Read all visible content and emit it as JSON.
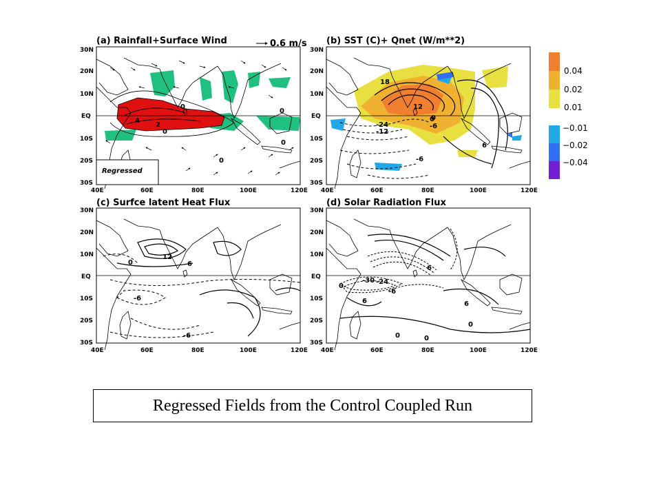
{
  "panels": {
    "a": {
      "title": "(a) Rainfall+Surface Wind",
      "ref_vector": "0.6 m/s",
      "inset": "Regressed",
      "labels": [
        "0",
        "4",
        "2",
        "0",
        "0",
        "0",
        "0"
      ]
    },
    "b": {
      "title": "(b) SST (C)+ Qnet (W/m**2)",
      "labels": [
        "18",
        "12",
        "0",
        "-6",
        "-24",
        "-12",
        "6",
        "-6",
        "0"
      ]
    },
    "c": {
      "title": "(c) Surfce latent Heat Flux",
      "labels": [
        "0",
        "12",
        "6",
        "-6",
        "-6"
      ]
    },
    "d": {
      "title": "(d) Solar Radiation Flux",
      "labels": [
        "6",
        "0",
        "-30",
        "-24",
        "-6",
        "6",
        "6",
        "0",
        "0",
        "0"
      ]
    }
  },
  "axes": {
    "lat": [
      "30N",
      "20N",
      "10N",
      "EQ",
      "10S",
      "20S",
      "30S"
    ],
    "lon_left": [
      "40E",
      "60E",
      "80E",
      "100E",
      "120E"
    ],
    "lon_right": [
      "40E",
      "60E",
      "80E",
      "100E",
      "120E"
    ]
  },
  "legend": {
    "items": [
      {
        "label": "0.04",
        "color": "#f08030"
      },
      {
        "label": "0.02",
        "color": "#f0b030"
      },
      {
        "label": "0.01",
        "color": "#e8e040"
      },
      {
        "label": "−0.01",
        "color": "#20a8e8"
      },
      {
        "label": "−0.02",
        "color": "#3070f0"
      },
      {
        "label": "−0.04",
        "color": "#7020d0"
      }
    ]
  },
  "colors": {
    "rain": "#e01010",
    "rain_neg": "#20c080",
    "sst_warm": "#f0a040"
  },
  "caption": "Regressed Fields from the Control Coupled Run"
}
